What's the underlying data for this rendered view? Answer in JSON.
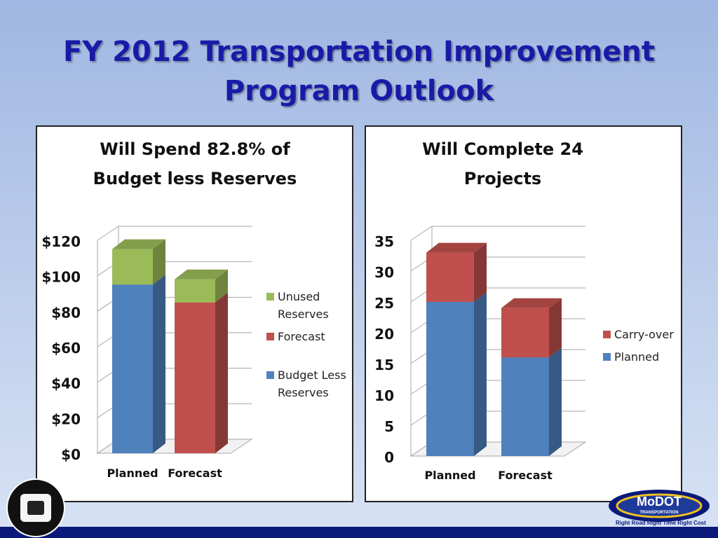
{
  "slide": {
    "title_line1": "FY 2012 Transportation Improvement",
    "title_line2": "Program Outlook"
  },
  "colors": {
    "blue": "#4f81bd",
    "red": "#c0504d",
    "green": "#9bbb59",
    "title": "#1a1aa8",
    "bar": "#0a1a7a"
  },
  "logos": {
    "left_icon": "seal-icon",
    "right_icon": "modot-logo-icon",
    "right_text": "MoDOT",
    "right_subtext": "TRANSPORTATION",
    "tagline": "Right Road   Right Time   Right Cost"
  },
  "chart_data": [
    {
      "type": "bar",
      "stacked": true,
      "title_lines": [
        "Will Spend 82.8% of",
        "Budget less Reserves"
      ],
      "categories": [
        "Planned",
        "Forecast"
      ],
      "series": [
        {
          "name": "Budget Less Reserves",
          "legend_lines": [
            "Budget Less",
            "Reserves"
          ],
          "color": "#4f81bd",
          "values": [
            95,
            0
          ]
        },
        {
          "name": "Forecast",
          "legend_lines": [
            "Forecast"
          ],
          "color": "#c0504d",
          "values": [
            0,
            85
          ]
        },
        {
          "name": "Unused Reserves",
          "legend_lines": [
            "Unused",
            "Reserves"
          ],
          "color": "#9bbb59",
          "values": [
            20,
            13
          ]
        }
      ],
      "legend_order": [
        2,
        1,
        0
      ],
      "ylim": [
        0,
        120
      ],
      "yticks": [
        0,
        20,
        40,
        60,
        80,
        100,
        120
      ],
      "ytick_labels": [
        "$0",
        "$20",
        "$40",
        "$60",
        "$80",
        "$100",
        "$120"
      ],
      "legend_position": "right",
      "grid": true
    },
    {
      "type": "bar",
      "stacked": true,
      "title_lines": [
        "Will Complete 24",
        "Projects"
      ],
      "categories": [
        "Planned",
        "Forecast"
      ],
      "series": [
        {
          "name": "Planned",
          "legend_lines": [
            "Planned"
          ],
          "color": "#4f81bd",
          "values": [
            25,
            16
          ]
        },
        {
          "name": "Carry-over",
          "legend_lines": [
            "Carry-over"
          ],
          "color": "#c0504d",
          "values": [
            8,
            8
          ]
        }
      ],
      "legend_order": [
        1,
        0
      ],
      "ylim": [
        0,
        35
      ],
      "yticks": [
        0,
        5,
        10,
        15,
        20,
        25,
        30,
        35
      ],
      "ytick_labels": [
        "0",
        "5",
        "10",
        "15",
        "20",
        "25",
        "30",
        "35"
      ],
      "legend_position": "right",
      "grid": true
    }
  ]
}
